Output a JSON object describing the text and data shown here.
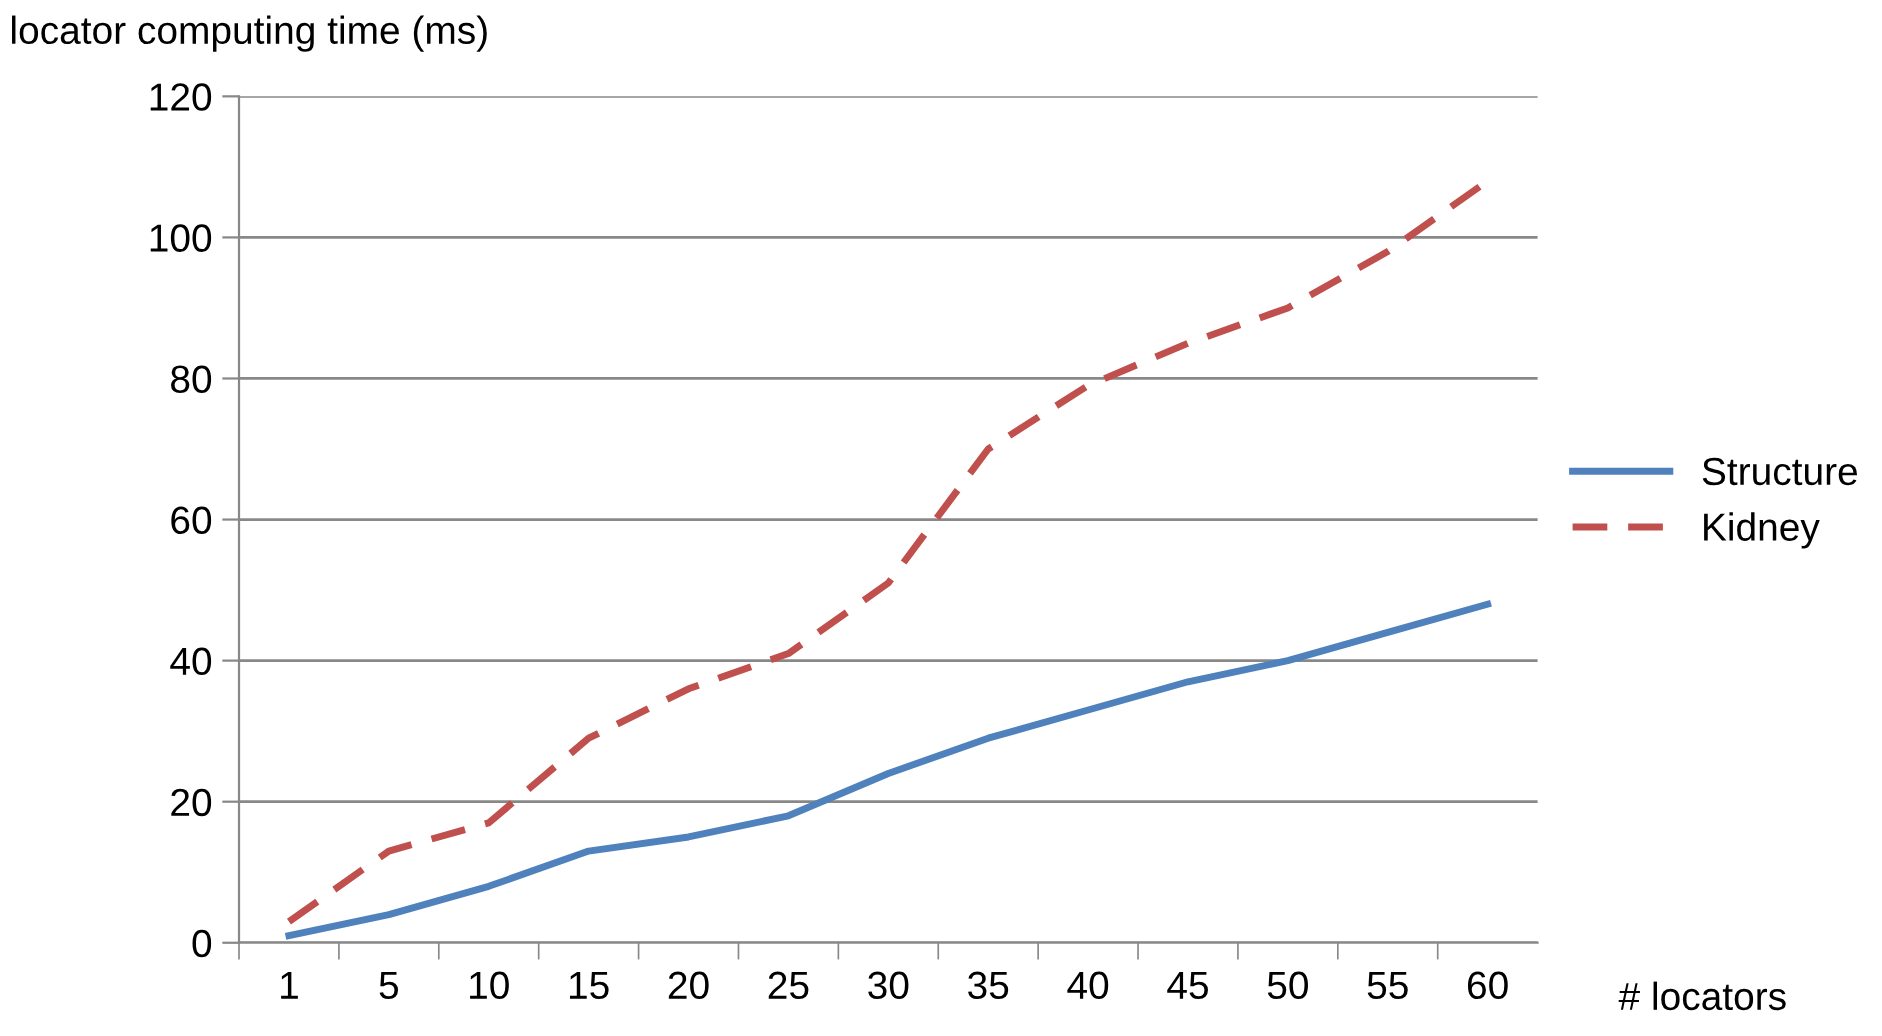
{
  "chart_data": {
    "type": "line",
    "ylabel": "locator computing time (ms)",
    "xlabel": "# locators",
    "categories": [
      "1",
      "5",
      "10",
      "15",
      "20",
      "25",
      "30",
      "35",
      "40",
      "45",
      "50",
      "55",
      "60"
    ],
    "series": [
      {
        "name": "Structure",
        "color": "#4f81bd",
        "line_style": "solid",
        "values": [
          1,
          4,
          8,
          13,
          15,
          18,
          24,
          29,
          33,
          37,
          40,
          44,
          48
        ]
      },
      {
        "name": "Kidney",
        "color": "#c0504d",
        "line_style": "dashed",
        "values": [
          3,
          13,
          17,
          29,
          36,
          41,
          51,
          70,
          79,
          85,
          90,
          98,
          108
        ]
      }
    ],
    "ylim": [
      0,
      120
    ],
    "yticks": [
      0,
      20,
      40,
      60,
      80,
      100,
      120
    ],
    "grid": "y",
    "legend": "right",
    "marker": "none"
  }
}
